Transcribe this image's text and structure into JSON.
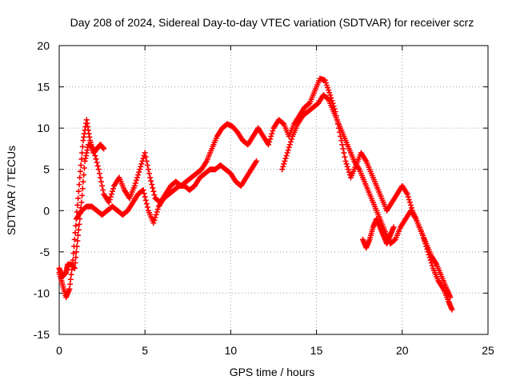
{
  "chart_data": {
    "type": "scatter",
    "title": "Day 208 of 2024, Sidereal Day-to-day VTEC variation (SDTVAR) for receiver scrz",
    "xlabel": "GPS time / hours",
    "ylabel": "SDTVAR / TECUs",
    "xlim": [
      0,
      25
    ],
    "ylim": [
      -15,
      20
    ],
    "x_ticks": [
      0,
      5,
      10,
      15,
      20,
      25
    ],
    "y_ticks": [
      -15,
      -10,
      -5,
      0,
      5,
      10,
      15,
      20
    ],
    "grid": true,
    "marker": "plus",
    "series_color": "#ff0000",
    "series": [
      {
        "name": "track-a",
        "x": [
          0.0,
          0.2,
          0.4,
          0.6,
          0.8,
          1.0,
          1.2,
          1.4,
          1.6,
          1.8,
          2.0,
          2.2,
          2.4,
          2.6
        ],
        "y": [
          -7.5,
          -9.0,
          -10.5,
          -9.5,
          -6.0,
          -1.0,
          4.0,
          8.5,
          11.0,
          8.5,
          7.0,
          7.5,
          8.0,
          7.5
        ]
      },
      {
        "name": "track-b",
        "x": [
          0.0,
          0.2,
          0.4,
          0.5,
          0.7,
          0.9,
          1.1,
          1.3,
          1.5,
          1.7,
          2.0,
          2.3,
          2.6,
          2.9,
          3.2,
          3.5,
          3.8,
          4.1,
          4.4,
          4.7,
          5.0,
          5.3,
          5.6,
          5.9,
          6.2,
          6.5,
          6.8,
          7.1,
          7.4,
          7.7,
          8.0,
          8.3,
          8.6,
          8.9,
          9.2,
          9.5,
          9.8,
          10.1,
          10.4,
          10.7,
          11.0,
          11.3,
          11.6,
          11.9,
          12.2,
          12.5,
          12.8,
          13.1,
          13.4,
          13.7,
          14.0,
          14.3,
          14.6,
          14.9,
          15.2,
          15.5,
          15.8,
          16.1,
          16.4,
          16.7,
          17.0,
          17.3,
          17.6,
          17.9,
          18.2,
          18.5,
          18.8,
          19.1,
          19.4,
          19.7,
          20.0,
          20.3,
          20.6,
          20.9,
          21.2,
          21.5,
          21.8,
          22.1,
          22.4,
          22.7,
          22.9
        ],
        "y": [
          -7.0,
          -8.0,
          -7.5,
          -6.5,
          -6.5,
          -7.0,
          -3.0,
          1.0,
          6.0,
          8.0,
          7.5,
          5.0,
          2.0,
          1.0,
          3.0,
          4.0,
          2.5,
          1.5,
          3.0,
          5.0,
          7.0,
          4.0,
          1.5,
          1.0,
          2.0,
          3.0,
          3.5,
          3.0,
          3.5,
          4.0,
          4.5,
          5.0,
          6.0,
          7.5,
          9.0,
          10.0,
          10.5,
          10.2,
          9.5,
          8.5,
          8.0,
          9.0,
          10.0,
          9.0,
          8.0,
          10.0,
          11.0,
          10.5,
          9.0,
          10.5,
          11.5,
          12.5,
          13.0,
          14.5,
          16.0,
          15.8,
          14.0,
          12.0,
          9.0,
          6.0,
          4.0,
          5.5,
          7.0,
          6.0,
          4.5,
          3.0,
          1.5,
          0.0,
          1.0,
          2.0,
          3.0,
          2.0,
          0.0,
          -1.5,
          -3.0,
          -5.0,
          -7.0,
          -8.5,
          -9.5,
          -11.0,
          -12.0
        ]
      },
      {
        "name": "track-c",
        "x": [
          1.0,
          1.3,
          1.6,
          1.9,
          2.2,
          2.5,
          2.8,
          3.1,
          3.4,
          3.7,
          4.0,
          4.3,
          4.6,
          4.9,
          5.2,
          5.5,
          5.8,
          6.1,
          6.4,
          6.7,
          7.0,
          7.3,
          7.6,
          7.9,
          8.2,
          8.5,
          8.8,
          9.1,
          9.4,
          9.7,
          10.0,
          10.3,
          10.6,
          10.9,
          11.2,
          11.5
        ],
        "y": [
          -1.0,
          0.0,
          0.5,
          0.5,
          0.0,
          -0.5,
          0.0,
          0.5,
          0.0,
          -0.5,
          0.0,
          1.0,
          2.0,
          2.5,
          0.0,
          -1.5,
          0.5,
          1.5,
          2.0,
          2.5,
          3.0,
          3.0,
          2.5,
          3.0,
          4.0,
          4.5,
          5.0,
          5.0,
          5.5,
          5.0,
          4.5,
          3.5,
          3.0,
          4.0,
          5.0,
          6.0
        ]
      },
      {
        "name": "track-d",
        "x": [
          13.0,
          13.3,
          13.6,
          13.9,
          14.2,
          14.5,
          14.8,
          15.1,
          15.4,
          15.7,
          16.0,
          16.3,
          16.6,
          16.9,
          17.2,
          17.5,
          17.8,
          18.1,
          18.4,
          18.7,
          19.0,
          19.3,
          19.6,
          19.9,
          20.2,
          20.5,
          20.8,
          21.1,
          21.4,
          21.7,
          22.0,
          22.3,
          22.6,
          22.8
        ],
        "y": [
          5.0,
          7.0,
          9.0,
          10.5,
          11.5,
          12.0,
          12.5,
          13.0,
          14.0,
          13.5,
          12.0,
          10.5,
          9.0,
          7.5,
          6.0,
          5.0,
          3.5,
          2.0,
          0.5,
          -1.0,
          -2.5,
          -4.0,
          -3.5,
          -2.0,
          -1.0,
          0.0,
          -1.0,
          -2.5,
          -4.0,
          -5.5,
          -6.5,
          -8.0,
          -9.5,
          -10.5
        ]
      },
      {
        "name": "track-e",
        "x": [
          17.7,
          17.9,
          18.1,
          18.3,
          18.5,
          18.7,
          18.9,
          19.1,
          19.3,
          19.5
        ],
        "y": [
          -3.5,
          -4.5,
          -3.5,
          -2.0,
          -1.0,
          -2.0,
          -3.0,
          -4.0,
          -3.0,
          -2.0
        ]
      }
    ]
  }
}
